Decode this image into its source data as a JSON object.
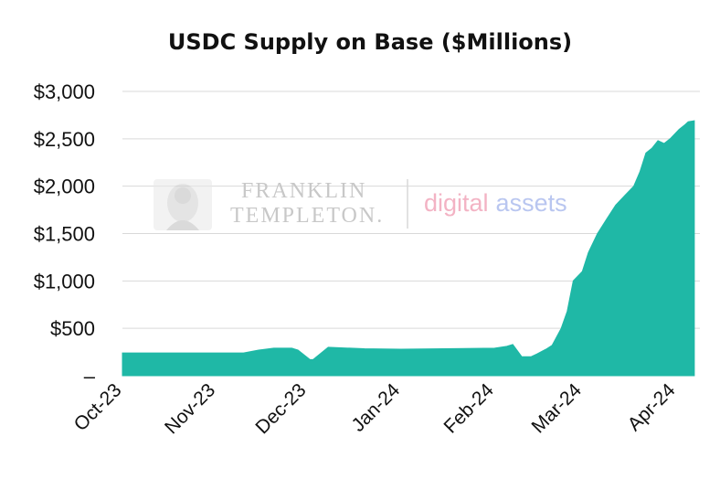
{
  "chart_data": {
    "type": "area",
    "title": "USDC Supply on Base ($Millions)",
    "xlabel": "",
    "ylabel": "",
    "ylim": [
      0,
      3000
    ],
    "y_ticks": [
      {
        "value": 0,
        "label": "–"
      },
      {
        "value": 500,
        "label": "$500"
      },
      {
        "value": 1000,
        "label": "$1,000"
      },
      {
        "value": 1500,
        "label": "$1,500"
      },
      {
        "value": 2000,
        "label": "$2,000"
      },
      {
        "value": 2500,
        "label": "$2,500"
      },
      {
        "value": 3000,
        "label": "$3,000"
      }
    ],
    "x_ticks": [
      {
        "date": "2023-10-01",
        "label": "Oct-23"
      },
      {
        "date": "2023-11-01",
        "label": "Nov-23"
      },
      {
        "date": "2023-12-01",
        "label": "Dec-23"
      },
      {
        "date": "2024-01-01",
        "label": "Jan-24"
      },
      {
        "date": "2024-02-01",
        "label": "Feb-24"
      },
      {
        "date": "2024-03-01",
        "label": "Mar-24"
      },
      {
        "date": "2024-04-01",
        "label": "Apr-24"
      }
    ],
    "grid": true,
    "legend": "none",
    "color": "#1fb8a6",
    "series": [
      {
        "x": [
          "2023-10-01",
          "2023-10-15",
          "2023-11-01",
          "2023-11-10",
          "2023-11-15",
          "2023-11-20",
          "2023-11-26",
          "2023-11-28",
          "2023-12-02",
          "2023-12-03",
          "2023-12-08",
          "2023-12-20",
          "2024-01-01",
          "2024-01-15",
          "2024-02-01",
          "2024-02-05",
          "2024-02-07",
          "2024-02-10",
          "2024-02-13",
          "2024-02-15",
          "2024-02-18",
          "2024-02-20",
          "2024-02-23",
          "2024-02-25",
          "2024-02-27",
          "2024-03-01",
          "2024-03-03",
          "2024-03-06",
          "2024-03-09",
          "2024-03-12",
          "2024-03-15",
          "2024-03-18",
          "2024-03-20",
          "2024-03-22",
          "2024-03-24",
          "2024-03-26",
          "2024-03-28",
          "2024-03-30",
          "2024-04-02",
          "2024-04-04",
          "2024-04-05",
          "2024-04-07"
        ],
        "y": [
          240,
          240,
          240,
          240,
          270,
          290,
          290,
          270,
          170,
          170,
          300,
          285,
          280,
          285,
          290,
          310,
          330,
          200,
          200,
          230,
          280,
          320,
          500,
          680,
          1000,
          1100,
          1300,
          1500,
          1650,
          1800,
          1900,
          2000,
          2150,
          2350,
          2400,
          2480,
          2450,
          2500,
          2600,
          2650,
          2680,
          2690
        ]
      }
    ]
  },
  "watermark": {
    "line1": "FRANKLIN",
    "line2": "TEMPLETON.",
    "digital": "digital",
    "assets": "assets"
  }
}
